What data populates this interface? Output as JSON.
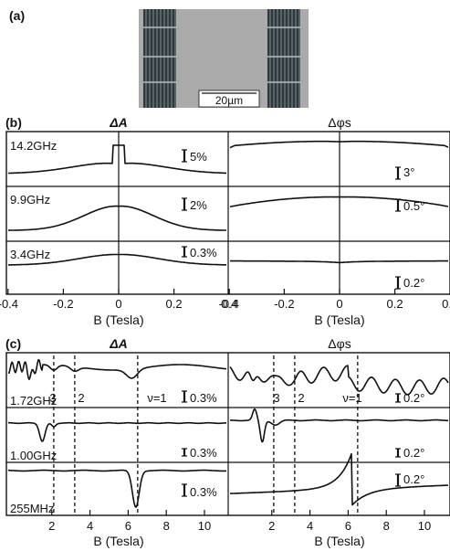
{
  "panel_a": {
    "label": "(a)",
    "scale_bar": "20µm",
    "colors": {
      "photo_bg": "#aaaaaa",
      "comb": "#2f3a40",
      "comb_line": "#9aa2a6"
    }
  },
  "panel_b": {
    "label": "(b)",
    "left_title": "ΔA",
    "right_title": "Δφs",
    "xlabel": "B (Tesla)",
    "xticks": [
      "-0.4",
      "-0.2",
      "0",
      "0.2",
      "0.4"
    ],
    "rows": [
      {
        "freq": "14.2GHz",
        "left_scale": "5%",
        "right_scale": "3°"
      },
      {
        "freq": "9.9GHz",
        "left_scale": "2%",
        "right_scale": "0.5°"
      },
      {
        "freq": "3.4GHz",
        "left_scale": "0.3%",
        "right_scale": "0.2°"
      }
    ]
  },
  "panel_c": {
    "label": "(c)",
    "left_title": "ΔA",
    "right_title": "Δφs",
    "xlabel": "B (Tesla)",
    "xticks": [
      "2",
      "4",
      "6",
      "8",
      "10"
    ],
    "filling_labels": [
      "3",
      "2",
      "ν=1"
    ],
    "rows": [
      {
        "freq": "1.72GHz",
        "left_scale": "0.3%",
        "right_scale": "0.2°"
      },
      {
        "freq": "1.00GHz",
        "left_scale": "0.3%",
        "right_scale": "0.2°"
      },
      {
        "freq": "255MHz",
        "left_scale": "0.3%",
        "right_scale": "0.2°"
      }
    ]
  },
  "chart_data": [
    {
      "type": "line",
      "panel": "b",
      "xlabel": "B (Tesla)",
      "xlim": [
        -0.47,
        0.47
      ],
      "xticks": [
        -0.4,
        -0.2,
        0,
        0.2,
        0.4
      ],
      "left_title": "ΔA",
      "right_title": "Δφs",
      "series": [
        {
          "name": "14.2GHz",
          "quantity": "ΔA",
          "scale_bar": "5%"
        },
        {
          "name": "9.9GHz",
          "quantity": "ΔA",
          "scale_bar": "2%"
        },
        {
          "name": "3.4GHz",
          "quantity": "ΔA",
          "scale_bar": "0.3%"
        },
        {
          "name": "14.2GHz",
          "quantity": "Δφs",
          "scale_bar": "3°"
        },
        {
          "name": "9.9GHz",
          "quantity": "Δφs",
          "scale_bar": "0.5°"
        },
        {
          "name": "3.4GHz",
          "quantity": "Δφs",
          "scale_bar": "0.2°"
        }
      ]
    },
    {
      "type": "line",
      "panel": "c",
      "xlabel": "B (Tesla)",
      "xlim": [
        0,
        11
      ],
      "xticks": [
        2,
        4,
        6,
        8,
        10
      ],
      "left_title": "ΔA",
      "right_title": "Δφs",
      "filling_factor_lines": [
        {
          "label": "3",
          "B": 2.1
        },
        {
          "label": "2",
          "B": 3.2
        },
        {
          "label": "ν=1",
          "B": 6.5
        }
      ],
      "series": [
        {
          "name": "1.72GHz",
          "quantity": "ΔA",
          "scale_bar": "0.3%"
        },
        {
          "name": "1.00GHz",
          "quantity": "ΔA",
          "scale_bar": "0.3%"
        },
        {
          "name": "255MHz",
          "quantity": "ΔA",
          "scale_bar": "0.3%"
        },
        {
          "name": "1.72GHz",
          "quantity": "Δφs",
          "scale_bar": "0.2°"
        },
        {
          "name": "1.00GHz",
          "quantity": "Δφs",
          "scale_bar": "0.2°"
        },
        {
          "name": "255MHz",
          "quantity": "Δφs",
          "scale_bar": "0.2°"
        }
      ]
    }
  ]
}
